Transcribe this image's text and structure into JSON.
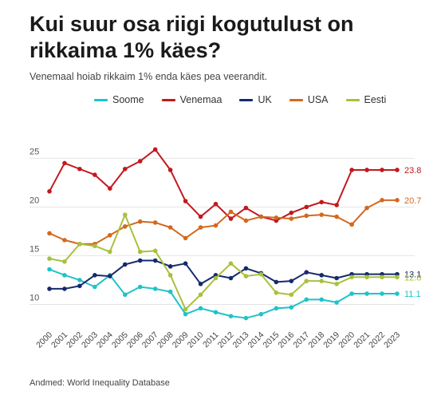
{
  "title": "Kui suur osa riigi kogutulust on rikkaima 1% käes?",
  "subtitle": "Venemaal hoiab rikkaim 1% enda käes pea veerandit.",
  "source": "Andmed: World Inequality Database",
  "chart_data": {
    "type": "line",
    "title": "Kui suur osa riigi kogutulust on rikkaima 1% käes?",
    "subtitle": "Venemaal hoiab rikkaim 1% enda käes pea veerandit.",
    "xlabel": "",
    "ylabel": "",
    "ylim": [
      7.5,
      26.5
    ],
    "yticks": [
      10,
      15,
      20,
      25
    ],
    "grid": true,
    "legend_position": "top",
    "x": [
      "2000",
      "2001",
      "2002",
      "2003",
      "2004",
      "2005",
      "2006",
      "2007",
      "2008",
      "2009",
      "2010",
      "2011",
      "2012",
      "2013",
      "2014",
      "2015",
      "2016",
      "2017",
      "2018",
      "2019",
      "2020",
      "2021",
      "2022",
      "2023"
    ],
    "series": [
      {
        "name": "Soome",
        "color": "#1fc3c8",
        "end_label": "11.1",
        "values": [
          13.6,
          13.0,
          12.5,
          11.8,
          13.0,
          11.0,
          11.8,
          11.6,
          11.3,
          9.0,
          9.6,
          9.2,
          8.8,
          8.6,
          9.0,
          9.6,
          9.7,
          10.5,
          10.5,
          10.2,
          11.1,
          11.1,
          11.1,
          11.1
        ]
      },
      {
        "name": "Venemaa",
        "color": "#c2191d",
        "end_label": "23.8",
        "values": [
          21.6,
          24.5,
          23.9,
          23.3,
          21.9,
          23.9,
          24.7,
          25.9,
          23.8,
          20.6,
          19.0,
          20.3,
          18.8,
          19.9,
          19.0,
          18.6,
          19.4,
          20.0,
          20.5,
          20.2,
          23.8,
          23.8,
          23.8,
          23.8
        ]
      },
      {
        "name": "UK",
        "color": "#152a6e",
        "end_label": "13.1",
        "values": [
          11.6,
          11.6,
          11.9,
          13.0,
          12.9,
          14.1,
          14.5,
          14.5,
          13.9,
          14.2,
          12.1,
          13.0,
          12.7,
          13.7,
          13.2,
          12.3,
          12.4,
          13.3,
          13.0,
          12.7,
          13.1,
          13.1,
          13.1,
          13.1
        ]
      },
      {
        "name": "USA",
        "color": "#d2691e",
        "end_label": "20.7",
        "values": [
          17.3,
          16.6,
          16.2,
          16.2,
          17.1,
          18.0,
          18.5,
          18.4,
          17.9,
          16.8,
          17.9,
          18.1,
          19.5,
          18.6,
          19.0,
          18.9,
          18.8,
          19.1,
          19.2,
          19.0,
          18.2,
          19.9,
          20.7,
          20.7
        ]
      },
      {
        "name": "Eesti",
        "color": "#a8c13b",
        "end_label": "12.8",
        "values": [
          14.7,
          14.4,
          16.2,
          16.0,
          15.4,
          19.2,
          15.4,
          15.5,
          13.0,
          9.5,
          11.0,
          12.7,
          14.2,
          12.9,
          13.1,
          11.2,
          11.0,
          12.4,
          12.4,
          12.1,
          12.8,
          12.8,
          12.8,
          12.8
        ]
      }
    ]
  }
}
